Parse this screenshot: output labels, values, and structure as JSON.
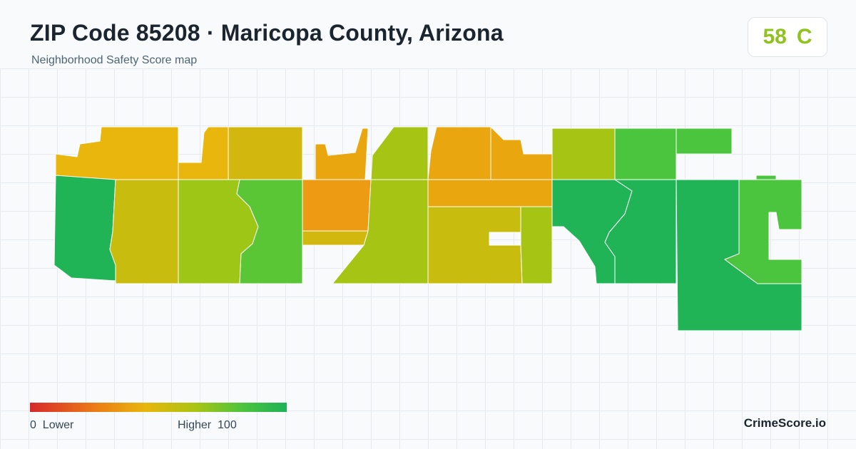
{
  "header": {
    "title": "ZIP Code 85208 · Maricopa County, Arizona",
    "subtitle": "Neighborhood Safety Score map"
  },
  "score": {
    "value": "58",
    "grade": "C",
    "color": "#8fc21c"
  },
  "legend": {
    "low_label": "0  Lower",
    "high_label": "Higher  100",
    "colors": [
      "#d7282a",
      "#ec7a18",
      "#e8b60c",
      "#a8c412",
      "#4fc43c",
      "#1eb157"
    ]
  },
  "brand": "CrimeScore.io",
  "map": {
    "region_colors": {
      "amber": "#e8b60c",
      "amber_orange": "#eaa60e",
      "orange": "#ec9b12",
      "mustard": "#d2b80e",
      "olive": "#c8bc0e",
      "yellow_green": "#a6c414",
      "lime": "#9ec616",
      "light_green": "#5ac636",
      "green": "#4cc53e",
      "dark_green": "#20b457"
    }
  }
}
